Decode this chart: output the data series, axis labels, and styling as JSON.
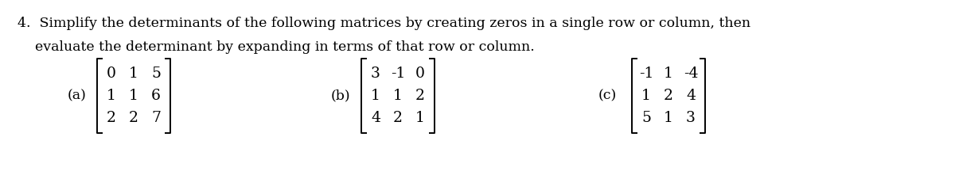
{
  "bg_color": "#ffffff",
  "text_color": "#000000",
  "title_line1": "4.  Simplify the determinants of the following matrices by creating zeros in a single row or column, then",
  "title_line2": "    evaluate the determinant by expanding in terms of that row or column.",
  "label_a": "(a)",
  "label_b": "(b)",
  "label_c": "(c)",
  "matrix_a": [
    [
      "0",
      "1",
      "5"
    ],
    [
      "1",
      "1",
      "6"
    ],
    [
      "2",
      "2",
      "7"
    ]
  ],
  "matrix_b": [
    [
      "3",
      "-1",
      "0"
    ],
    [
      "1",
      "1",
      "2"
    ],
    [
      "4",
      "2",
      "1"
    ]
  ],
  "matrix_c": [
    [
      "-1",
      "1",
      "-4"
    ],
    [
      "1",
      "2",
      "4"
    ],
    [
      "5",
      "1",
      "3"
    ]
  ],
  "font_size_text": 12.5,
  "font_size_matrix": 13.5,
  "font_family": "DejaVu Serif"
}
